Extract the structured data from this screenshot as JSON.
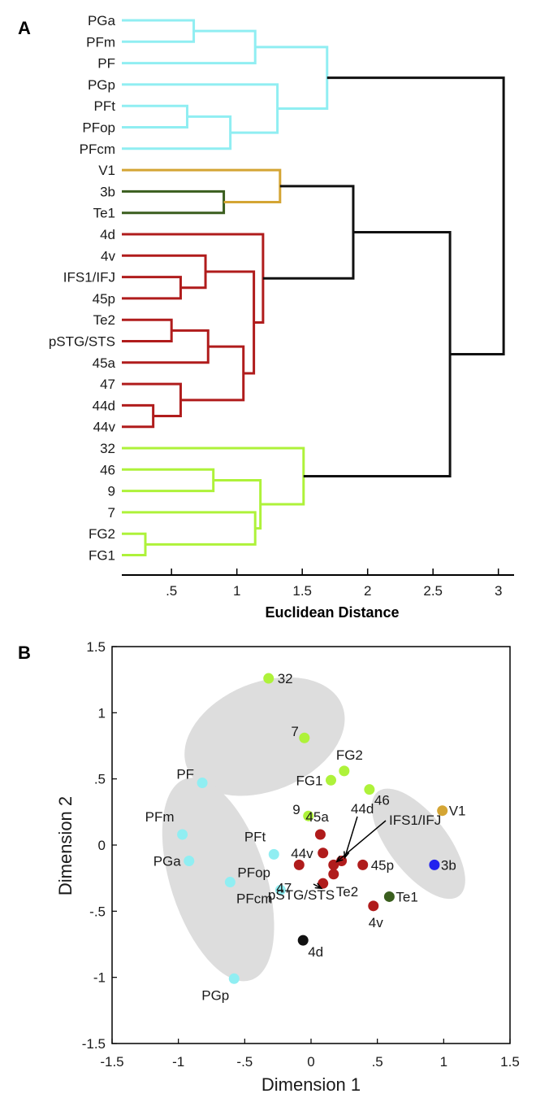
{
  "panel_a_letter": "A",
  "panel_b_letter": "B",
  "colors": {
    "cyan": "#90eef2",
    "orange": "#d4a534",
    "blue": "#2222ee",
    "darkgreen": "#3a5e1e",
    "black": "#111111",
    "red": "#b01c1c",
    "lime": "#aef23a",
    "ellipse": "#dddddd"
  },
  "chart_data": [
    {
      "type": "dendrogram",
      "xlabel": "Euclidean Distance",
      "xlim": [
        0.12,
        3.12
      ],
      "xticks": [
        0.5,
        1,
        1.5,
        2,
        2.5,
        3
      ],
      "xtick_labels": [
        ".5",
        "1",
        "1.5",
        "2",
        "2.5",
        "3"
      ],
      "leaves": [
        "PGa",
        "PFm",
        "PF",
        "PGp",
        "PFt",
        "PFop",
        "PFcm",
        "V1",
        "3b",
        "Te1",
        "4d",
        "4v",
        "IFS1/IFJ",
        "45p",
        "Te2",
        "pSTG/STS",
        "45a",
        "47",
        "44d",
        "44v",
        "32",
        "46",
        "9",
        "7",
        "FG2",
        "FG1"
      ],
      "merges": [
        {
          "left": "PGa",
          "right": "PFm",
          "height": 0.67,
          "color": "cyan"
        },
        {
          "left": "m1",
          "right": "PF",
          "height": 1.14,
          "color": "cyan"
        },
        {
          "left": "PFt",
          "right": "PFop",
          "height": 0.62,
          "color": "cyan"
        },
        {
          "left": "m3",
          "right": "PFcm",
          "height": 0.95,
          "color": "cyan"
        },
        {
          "left": "PGp",
          "right": "m4",
          "height": 1.31,
          "color": "cyan"
        },
        {
          "left": "m2",
          "right": "m5",
          "height": 1.69,
          "color": "cyan"
        },
        {
          "left": "3b",
          "right": "Te1",
          "height": 0.9,
          "color": "darkgreen"
        },
        {
          "left": "V1",
          "right": "m7",
          "height": 1.33,
          "color": "orange"
        },
        {
          "left": "IFS1/IFJ",
          "right": "45p",
          "height": 0.57,
          "color": "red"
        },
        {
          "left": "4v",
          "right": "m9",
          "height": 0.76,
          "color": "red"
        },
        {
          "left": "Te2",
          "right": "pSTG/STS",
          "height": 0.5,
          "color": "red"
        },
        {
          "left": "m11",
          "right": "45a",
          "height": 0.78,
          "color": "red"
        },
        {
          "left": "44d",
          "right": "44v",
          "height": 0.36,
          "color": "red"
        },
        {
          "left": "47",
          "right": "m13",
          "height": 0.57,
          "color": "red"
        },
        {
          "left": "m12",
          "right": "m14",
          "height": 1.05,
          "color": "red"
        },
        {
          "left": "m10",
          "right": "m15",
          "height": 1.13,
          "color": "red"
        },
        {
          "left": "4d",
          "right": "m16",
          "height": 1.2,
          "color": "red"
        },
        {
          "left": "m8",
          "right": "m17",
          "height": 1.89,
          "color": "black"
        },
        {
          "left": "FG2",
          "right": "FG1",
          "height": 0.3,
          "color": "lime"
        },
        {
          "left": "7",
          "right": "m19",
          "height": 1.14,
          "color": "lime"
        },
        {
          "left": "46",
          "right": "9",
          "height": 0.82,
          "color": "lime"
        },
        {
          "left": "m21",
          "right": "m20",
          "height": 1.18,
          "color": "lime"
        },
        {
          "left": "32",
          "right": "m22",
          "height": 1.51,
          "color": "lime"
        },
        {
          "left": "m18",
          "right": "m23",
          "height": 2.63,
          "color": "black"
        },
        {
          "left": "m6",
          "right": "m24",
          "height": 3.04,
          "color": "black"
        }
      ]
    },
    {
      "type": "scatter",
      "xlabel": "Dimension 1",
      "ylabel": "Dimension 2",
      "xlim": [
        -1.5,
        1.5
      ],
      "ylim": [
        -1.5,
        1.5
      ],
      "xticks": [
        -1.5,
        -1,
        -0.5,
        0,
        0.5,
        1,
        1.5
      ],
      "xtick_labels": [
        "-1.5",
        "-1",
        "-.5",
        "0",
        ".5",
        "1",
        "1.5"
      ],
      "yticks": [
        1.5,
        1,
        0.5,
        0,
        -0.5,
        -1,
        -1.5
      ],
      "ytick_labels": [
        "1.5",
        "1",
        ".5",
        "0",
        "-.5",
        "-1",
        "-1.5"
      ],
      "groups": [
        {
          "cx": -0.35,
          "cy": 0.82,
          "rx": 0.63,
          "ry": 0.41,
          "angle": 22
        },
        {
          "cx": -0.7,
          "cy": -0.26,
          "rx": 0.36,
          "ry": 0.8,
          "angle": 18
        },
        {
          "cx": 0.81,
          "cy": 0.01,
          "rx": 0.22,
          "ry": 0.5,
          "angle": 38
        }
      ],
      "points": [
        {
          "label": "32",
          "x": -0.32,
          "y": 1.26,
          "color": "lime"
        },
        {
          "label": "7",
          "x": -0.05,
          "y": 0.81,
          "color": "lime"
        },
        {
          "label": "FG2",
          "x": 0.25,
          "y": 0.56,
          "color": "lime"
        },
        {
          "label": "FG1",
          "x": 0.15,
          "y": 0.49,
          "color": "lime"
        },
        {
          "label": "46",
          "x": 0.44,
          "y": 0.42,
          "color": "lime"
        },
        {
          "label": "9",
          "x": -0.02,
          "y": 0.22,
          "color": "lime"
        },
        {
          "label": "PF",
          "x": -0.82,
          "y": 0.47,
          "color": "cyan"
        },
        {
          "label": "PFm",
          "x": -0.97,
          "y": 0.08,
          "color": "cyan"
        },
        {
          "label": "PGa",
          "x": -0.92,
          "y": -0.12,
          "color": "cyan"
        },
        {
          "label": "PFt",
          "x": -0.28,
          "y": -0.07,
          "color": "cyan"
        },
        {
          "label": "PFop",
          "x": -0.61,
          "y": -0.28,
          "color": "cyan"
        },
        {
          "label": "PFcm",
          "x": -0.23,
          "y": -0.34,
          "color": "cyan"
        },
        {
          "label": "PGp",
          "x": -0.58,
          "y": -1.01,
          "color": "cyan"
        },
        {
          "label": "V1",
          "x": 0.99,
          "y": 0.26,
          "color": "orange"
        },
        {
          "label": "3b",
          "x": 0.93,
          "y": -0.15,
          "color": "blue"
        },
        {
          "label": "Te1",
          "x": 0.59,
          "y": -0.39,
          "color": "darkgreen"
        },
        {
          "label": "4d",
          "x": -0.06,
          "y": -0.72,
          "color": "black"
        },
        {
          "label": "45a",
          "x": 0.07,
          "y": 0.08,
          "color": "red"
        },
        {
          "label": "44v",
          "x": 0.09,
          "y": -0.06,
          "color": "red"
        },
        {
          "label": "44d",
          "x": 0.23,
          "y": -0.12,
          "color": "red"
        },
        {
          "label": "IFS1/IFJ",
          "x": 0.17,
          "y": -0.15,
          "color": "red"
        },
        {
          "label": "45p",
          "x": 0.39,
          "y": -0.15,
          "color": "red"
        },
        {
          "label": "47",
          "x": -0.09,
          "y": -0.15,
          "color": "red"
        },
        {
          "label": "Te2",
          "x": 0.17,
          "y": -0.22,
          "color": "red"
        },
        {
          "label": "pSTG/STS",
          "x": 0.09,
          "y": -0.29,
          "color": "red"
        },
        {
          "label": "4v",
          "x": 0.47,
          "y": -0.46,
          "color": "red"
        }
      ]
    }
  ]
}
